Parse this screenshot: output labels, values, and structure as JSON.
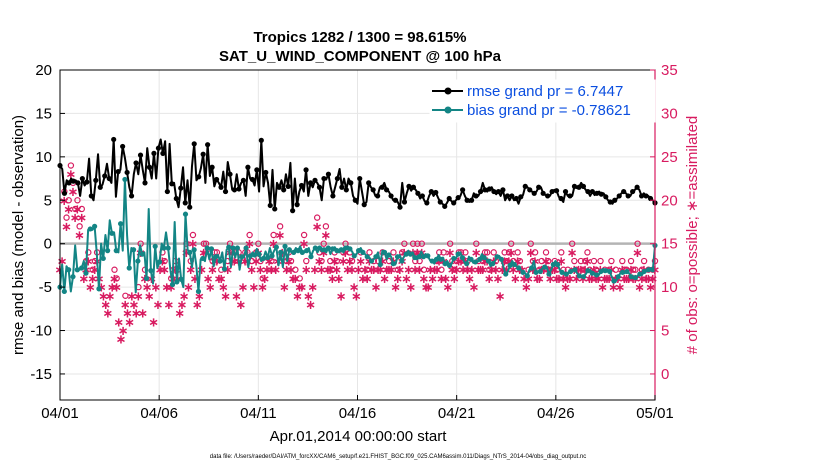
{
  "chart_data": {
    "type": "line",
    "title_line1": "Tropics 1282 / 1300 = 98.615%",
    "title_line2": "SAT_U_WIND_COMPONENT @ 100 hPa",
    "xlabel": "Apr.01,2014 00:00:00 start",
    "ylabel_left": "rmse and bias (model - observation)",
    "ylabel_right": "# of obs: o=possible; ∗=assimilated",
    "footnote": "data file: /Users/raeder/DAI/ATM_forcXX/CAM6_setup/f.e21.FHIST_BGC.f09_025.CAM6assim.011/Diags_NTrS_2014-04/obs_diag_output.nc",
    "xlim": [
      0,
      30
    ],
    "x_ticks": [
      0,
      5,
      10,
      15,
      20,
      25,
      30
    ],
    "x_tick_labels": [
      "04/01",
      "04/06",
      "04/11",
      "04/16",
      "04/21",
      "04/26",
      "05/01"
    ],
    "ylim_left": [
      -18,
      20
    ],
    "y_ticks_left": [
      -15,
      -10,
      -5,
      0,
      5,
      10,
      15,
      20
    ],
    "y_tick_labels_left": [
      "-15",
      "-10",
      "-5",
      "0",
      "5",
      "10",
      "15",
      "20"
    ],
    "ylim_right": [
      -3,
      35
    ],
    "y_ticks_right": [
      0,
      5,
      10,
      15,
      20,
      25,
      30,
      35
    ],
    "y_tick_labels_right": [
      "0",
      "5",
      "10",
      "15",
      "20",
      "25",
      "30",
      "35"
    ],
    "colors": {
      "rmse": "#000000",
      "bias": "#138585",
      "obs": "#d81b60",
      "legend_text": "#0a4ee0",
      "zero_line": "#b4b4b4",
      "grid": "#e6e6e6"
    },
    "series": [
      {
        "name": "rmse grand pr = 6.7447",
        "values": [
          9.0,
          8.6,
          5.8,
          7.3,
          7.0,
          7.5,
          7.2,
          7.3,
          7.0,
          5.5,
          7.5,
          6.7,
          7.1,
          9.8,
          5.5,
          5.0,
          7.3,
          10.3,
          6.5,
          6.8,
          7.8,
          9.2,
          7.5,
          7.0,
          12.0,
          5.4,
          8.3,
          8.5,
          11.2,
          9.9,
          8.2,
          6.5,
          5.5,
          8.0,
          9.3,
          8.0,
          10.2,
          8.5,
          7.0,
          11.0,
          8.8,
          7.5,
          10.4,
          7.5,
          11.0,
          12.0,
          10.4,
          11.8,
          6.0,
          11.5,
          6.9,
          7.0,
          5.2,
          4.2,
          6.4,
          8.8,
          4.7,
          7.3,
          4.2,
          8.9,
          11.5,
          7.3,
          7.7,
          8.7,
          10.3,
          7.0,
          11.4,
          7.8,
          8.8,
          6.6,
          7.4,
          7.0,
          6.5,
          8.3,
          6.0,
          9.4,
          8.0,
          6.2,
          6.2,
          8.0,
          6.3,
          7.0,
          7.3,
          5.5,
          8.8,
          7.5,
          7.4,
          6.7,
          8.5,
          6.0,
          11.9,
          6.6,
          8.2,
          7.0,
          4.4,
          8.5,
          4.0,
          7.0,
          6.5,
          7.3,
          6.2,
          8.0,
          6.6,
          9.3,
          3.8,
          7.5,
          4.5,
          6.0,
          6.7,
          6.0,
          8.5,
          5.5,
          7.0,
          6.5,
          7.3,
          7.0,
          6.5,
          5.0,
          7.5,
          7.4,
          8.0,
          6.5,
          5.5,
          6.5,
          7.5,
          8.6,
          6.5,
          7.5,
          6.2,
          7.5,
          7.0,
          5.5,
          5.0,
          4.6,
          7.5,
          6.0,
          4.5,
          4.8,
          7.0,
          6.5,
          6.2,
          5.5,
          5.5,
          6.5,
          6.5,
          7.0,
          6.2,
          6.0,
          5.5,
          5.0,
          5.0,
          4.8,
          4.2,
          7.0,
          4.8,
          5.8,
          6.6,
          6.1,
          6.5,
          6.2,
          5.8,
          5.2,
          5.5,
          4.9,
          4.7,
          5.5,
          6.0,
          5.5,
          5.9,
          5.3,
          4.8,
          4.6,
          4.3,
          4.7,
          5.2,
          4.9,
          4.7,
          5.0,
          5.3,
          5.5,
          6.2,
          5.5,
          5.0,
          4.8,
          5.0,
          5.8,
          5.5,
          5.5,
          6.0,
          7.0,
          6.2,
          6.0,
          6.3,
          6.5,
          6.0,
          5.7,
          6.0,
          5.5,
          6.2,
          5.0,
          5.5,
          5.0,
          5.5,
          5.0,
          5.2,
          4.6,
          5.4,
          5.6,
          6.6,
          6.5,
          6.2,
          6.0,
          5.8,
          6.0,
          6.5,
          6.5,
          5.8,
          5.6,
          5.5,
          5.5,
          6.0,
          6.2,
          6.1,
          5.4,
          5.2,
          4.8,
          6.0,
          5.5,
          5.5,
          5.5,
          6.6,
          6.4,
          6.5,
          7.0,
          6.6,
          6.2,
          6.0,
          5.5,
          6.0,
          5.6,
          5.8,
          6.0,
          5.7,
          5.8,
          5.4,
          5.0,
          4.8,
          4.6,
          5.0,
          5.2,
          5.5,
          5.8,
          6.0,
          5.8,
          5.5,
          5.5,
          6.0,
          6.2,
          6.5,
          6.2,
          5.5,
          5.8,
          5.5,
          5.5,
          5.2,
          5.0,
          4.7
        ]
      },
      {
        "name": "bias grand pr = -0.78621",
        "values": [
          -5.0,
          -2.4,
          -5.5,
          -2.6,
          -3.0,
          -5.5,
          -3.8,
          -0.2,
          -3.0,
          -3.0,
          -2.8,
          -2.0,
          -3.4,
          1.6,
          1.7,
          1.6,
          2.0,
          -1.1,
          -5.2,
          0.0,
          -1.7,
          1.0,
          -0.8,
          2.7,
          1.2,
          1.3,
          -0.8,
          -1.0,
          2.3,
          -0.8,
          7.4,
          1.0,
          -2.8,
          -0.5,
          -0.7,
          -5.6,
          -2.0,
          -0.2,
          -1.2,
          -1.0,
          -4.0,
          4.0,
          -3.1,
          -4.6,
          -0.3,
          -2.8,
          -2.1,
          0.0,
          -0.5,
          1.3,
          -0.5,
          -3.0,
          -4.7,
          2.5,
          -4.4,
          -1.7,
          -4.1,
          -5.0,
          3.4,
          -0.7,
          -1.0,
          -2.7,
          -0.7,
          -2.5,
          -5.5,
          -1.8,
          -1.7,
          -2.0,
          -0.5,
          -1.8,
          -0.6,
          -2.6,
          -1.5,
          -1.3,
          -2.0,
          -1.0,
          -2.9,
          -0.7,
          -0.4,
          -2.7,
          -0.5,
          -1.6,
          -0.5,
          -3.0,
          -1.5,
          -1.6,
          -0.5,
          -2.7,
          -1.4,
          -1.0,
          -1.3,
          -0.6,
          -1.2,
          -2.0,
          -1.7,
          -0.9,
          -1.6,
          -0.5,
          -1.4,
          -0.8,
          -0.4,
          -2.5,
          -1.0,
          -2.7,
          -0.3,
          -2.0,
          -0.7,
          -1.0,
          -1.0,
          -0.5,
          -0.8,
          -0.3,
          -1.0,
          -1.0,
          -0.8,
          -0.5,
          -1.5,
          -0.8,
          -0.5,
          -1.0,
          -0.5,
          -0.9,
          -0.7,
          -1.0,
          -0.5,
          -1.2,
          -0.6,
          -0.4,
          -0.8,
          -1.0,
          -0.7,
          -1.0,
          -0.5,
          -0.3,
          -0.6,
          -0.9,
          -1.4,
          -1.2,
          -0.8,
          -0.5,
          -1.0,
          -1.2,
          -1.5,
          -1.6,
          -2.0,
          -1.8,
          -1.5,
          -1.0,
          -2.4,
          -0.8,
          -1.0,
          -1.8,
          -1.3,
          -1.5,
          -2.3,
          -2.4,
          -1.5,
          -1.3,
          -2.0,
          -1.5,
          -1.2,
          -0.8,
          -1.2,
          -1.0,
          -1.6,
          -1.8,
          -1.5,
          -0.9,
          -1.5,
          -1.2,
          -1.4,
          -1.9,
          -2.0,
          -2.3,
          -1.8,
          -1.3,
          -1.8,
          -1.6,
          -2.3,
          -2.0,
          -2.5,
          -2.3,
          -1.7,
          -1.7,
          -1.2,
          -1.0,
          -1.6,
          -2.2,
          -2.3,
          -1.5,
          -1.8,
          -2.2,
          -2.1,
          -2.1,
          -1.8,
          -1.2,
          -1.6,
          -1.8,
          -2.0,
          -2.6,
          -2.3,
          -2.0,
          -1.5,
          -1.4,
          -1.8,
          -2.7,
          -3.5,
          -3.2,
          -2.5,
          -2.0,
          -2.4,
          -2.6,
          -2.8,
          -3.0,
          -3.3,
          -3.4,
          -3.7,
          -3.0,
          -2.8,
          -2.0,
          -3.3,
          -3.2,
          -3.2,
          -2.8,
          -2.7,
          -2.7,
          -3.5,
          -3.0,
          -2.4,
          -2.0,
          -2.4,
          -3.0,
          -3.3,
          -3.5,
          -3.5,
          -3.4,
          -3.2,
          -3.0,
          -3.0,
          -3.4,
          -3.7,
          -3.8,
          -3.8,
          -3.5,
          -3.1,
          -3.0,
          -3.4,
          -3.4,
          -3.6,
          -3.6,
          -3.2,
          -2.9,
          -3.1,
          -3.0,
          -3.2,
          -3.8,
          -4.3,
          -4.3,
          -3.8,
          -3.4,
          -3.3,
          -3.4,
          -3.2,
          -3.4,
          -3.8,
          -4.0,
          -3.9,
          -3.7,
          -3.5,
          -3.6,
          -3.2,
          -3.0,
          -3.0,
          -2.8,
          -3.0,
          -0.2
        ]
      }
    ]
  },
  "obs_counts": {
    "possible": [
      12,
      13,
      21,
      18,
      20,
      24,
      22,
      19,
      20,
      17,
      19,
      11,
      13,
      14,
      10,
      12,
      13,
      14,
      11,
      10,
      9,
      8,
      7,
      9,
      10,
      12,
      11,
      6,
      4,
      5,
      9,
      7,
      6,
      9,
      8,
      7,
      10,
      15,
      7,
      12,
      10,
      9,
      11,
      6,
      10,
      8,
      12,
      14,
      13,
      10,
      8,
      11,
      12,
      13,
      12,
      7,
      8,
      9,
      15,
      10,
      13,
      16,
      11,
      8,
      9,
      12,
      15,
      15,
      11,
      10,
      13,
      14,
      14,
      11,
      12,
      10,
      9,
      13,
      15,
      14,
      14,
      9,
      14,
      8,
      10,
      14,
      14,
      16,
      13,
      10,
      14,
      15,
      13,
      11,
      11,
      12,
      13,
      13,
      16,
      12,
      13,
      17,
      14,
      10,
      13,
      14,
      13,
      11,
      12,
      9,
      11,
      10,
      16,
      13,
      9,
      8,
      10,
      12,
      18,
      14,
      13,
      15,
      17,
      12,
      13,
      12,
      14,
      13,
      11,
      9,
      14,
      15,
      12,
      14,
      13,
      10,
      9,
      12,
      14,
      11,
      12,
      12,
      14,
      12,
      13,
      10,
      13,
      12,
      14,
      11,
      12,
      13,
      12,
      14,
      10,
      12,
      12,
      14,
      15,
      11,
      12,
      10,
      15,
      13,
      15,
      13,
      15,
      12,
      10,
      10,
      12,
      11,
      12,
      13,
      14,
      12,
      14,
      11,
      10,
      15,
      13,
      12,
      13,
      14,
      14,
      12,
      14,
      13,
      11,
      12,
      10,
      15,
      13,
      12,
      13,
      14,
      14,
      12,
      12,
      14,
      13,
      11,
      9,
      12,
      14,
      13,
      14,
      15,
      13,
      11,
      14,
      13,
      12,
      11,
      10,
      12,
      15,
      13,
      14,
      11,
      12,
      13,
      12,
      14,
      13,
      12,
      12,
      13,
      12,
      11,
      14,
      12,
      10,
      12,
      11,
      15,
      13,
      12,
      12,
      13,
      12,
      13,
      14,
      12,
      11,
      13,
      12,
      11,
      13,
      10,
      12,
      11,
      12,
      13,
      10,
      12,
      11,
      10,
      13,
      12,
      12,
      11,
      13,
      12,
      12,
      15,
      10,
      12,
      13,
      11,
      12,
      10,
      12,
      13
    ],
    "assimilated": [
      12,
      13,
      20,
      17,
      19,
      23,
      21,
      18,
      19,
      16,
      18,
      11,
      12,
      13,
      10,
      11,
      12,
      13,
      11,
      10,
      9,
      8,
      7,
      9,
      10,
      11,
      10,
      6,
      4,
      5,
      8,
      7,
      6,
      9,
      8,
      7,
      9,
      14,
      7,
      11,
      10,
      9,
      11,
      6,
      10,
      8,
      12,
      13,
      12,
      10,
      8,
      10,
      11,
      12,
      11,
      7,
      8,
      9,
      14,
      10,
      12,
      15,
      11,
      8,
      9,
      12,
      14,
      14,
      11,
      10,
      12,
      13,
      13,
      11,
      11,
      10,
      9,
      12,
      14,
      13,
      13,
      9,
      13,
      8,
      10,
      13,
      13,
      15,
      12,
      10,
      13,
      14,
      12,
      10,
      11,
      12,
      13,
      12,
      15,
      12,
      13,
      16,
      14,
      10,
      12,
      13,
      12,
      11,
      11,
      9,
      10,
      10,
      15,
      12,
      9,
      8,
      10,
      12,
      17,
      13,
      12,
      14,
      16,
      12,
      12,
      11,
      13,
      12,
      11,
      9,
      13,
      14,
      12,
      13,
      12,
      10,
      9,
      12,
      13,
      11,
      12,
      11,
      13,
      12,
      12,
      10,
      12,
      12,
      13,
      11,
      12,
      12,
      12,
      13,
      10,
      11,
      12,
      13,
      14,
      11,
      12,
      10,
      14,
      12,
      14,
      12,
      14,
      11,
      10,
      10,
      12,
      11,
      12,
      12,
      13,
      11,
      13,
      11,
      10,
      14,
      12,
      11,
      12,
      13,
      13,
      12,
      13,
      12,
      11,
      12,
      10,
      14,
      12,
      12,
      12,
      13,
      13,
      11,
      12,
      13,
      12,
      11,
      9,
      12,
      13,
      12,
      13,
      14,
      12,
      11,
      13,
      12,
      12,
      11,
      10,
      11,
      14,
      12,
      13,
      11,
      11,
      12,
      12,
      13,
      12,
      11,
      12,
      12,
      11,
      11,
      13,
      11,
      10,
      11,
      11,
      14,
      12,
      11,
      12,
      12,
      11,
      12,
      13,
      11,
      11,
      12,
      11,
      11,
      12,
      10,
      11,
      11,
      11,
      12,
      10,
      11,
      11,
      10,
      12,
      11,
      11,
      11,
      12,
      11,
      11,
      14,
      10,
      11,
      12,
      11,
      11,
      10,
      11,
      12
    ]
  }
}
